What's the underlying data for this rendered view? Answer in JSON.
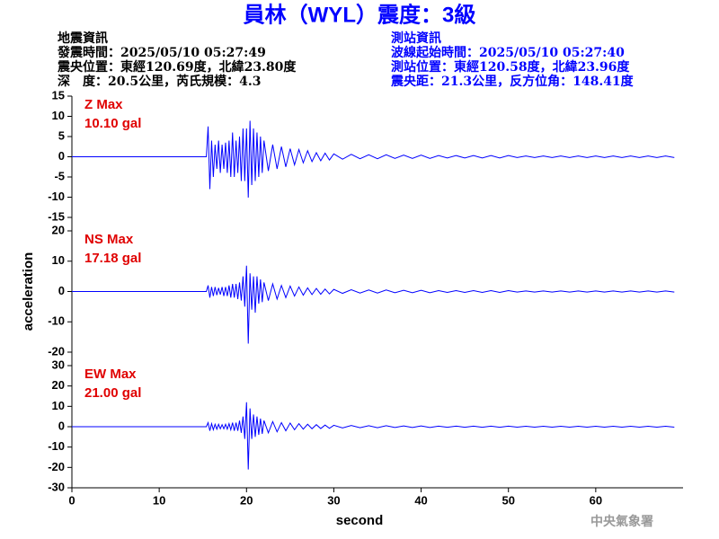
{
  "header": {
    "title": "員林（WYL）震度：3級",
    "left": [
      "地震資訊",
      "發震時間：2025/05/10 05:27:49",
      "震央位置：東經120.69度，北緯23.80度",
      "深　度：20.5公里，芮氏規模：4.3"
    ],
    "right": [
      "測站資訊",
      "波線起始時間：2025/05/10 05:27:40",
      "測站位置：東經120.58度，北緯23.96度",
      "震央距：21.3公里，反方位角：148.41度"
    ],
    "watermark": "中央氣象署"
  },
  "chart_data": [
    {
      "type": "line",
      "annotation": [
        "Z Max",
        "10.10 gal"
      ],
      "color": "#0000ff",
      "xlim": [
        0,
        70
      ],
      "ylim": [
        -15,
        15
      ],
      "yticks": [
        -15,
        -10,
        -5,
        0,
        5,
        10,
        15
      ],
      "x": [
        0,
        15.4,
        15.6,
        15.8,
        16,
        16.2,
        16.4,
        16.6,
        16.8,
        17,
        17.2,
        17.4,
        17.6,
        17.8,
        18,
        18.2,
        18.4,
        18.6,
        18.8,
        19,
        19.2,
        19.4,
        19.6,
        19.8,
        20,
        20.2,
        20.4,
        20.6,
        20.8,
        21,
        21.2,
        21.4,
        21.6,
        21.8,
        22,
        22.5,
        23,
        23.5,
        24,
        24.5,
        25,
        25.5,
        26,
        26.5,
        27,
        27.5,
        28,
        28.5,
        29,
        29.5,
        30,
        31,
        32,
        33,
        34,
        35,
        36,
        37,
        38,
        39,
        40,
        41,
        42,
        43,
        44,
        45,
        46,
        47,
        48,
        49,
        50,
        51,
        52,
        53,
        54,
        55,
        56,
        57,
        58,
        59,
        60,
        61,
        62,
        63,
        64,
        65,
        66,
        67,
        68,
        69
      ],
      "values": [
        0,
        0,
        7.5,
        -8,
        4,
        -5,
        3,
        -3,
        4,
        -4,
        3,
        -3,
        3.5,
        -4,
        4,
        -5,
        6,
        -5,
        4,
        -4,
        5,
        -6,
        7,
        -6,
        7,
        -10.1,
        8.9,
        -7,
        7,
        -6,
        6,
        -5,
        5,
        -4,
        4,
        -3.5,
        3,
        -3,
        2.5,
        -2.5,
        2,
        -2,
        1.8,
        -1.5,
        1.5,
        -1.2,
        1,
        -1,
        0.9,
        -0.8,
        0.7,
        -0.6,
        0.6,
        -0.5,
        0.5,
        -0.5,
        0.5,
        -0.4,
        0.4,
        -0.4,
        0.4,
        -0.4,
        0.3,
        -0.3,
        0.3,
        -0.3,
        0.3,
        -0.3,
        0.3,
        -0.3,
        0.3,
        -0.2,
        0.2,
        -0.2,
        0.2,
        -0.2,
        0.2,
        -0.2,
        0.2,
        -0.2,
        0.2,
        -0.2,
        0.2,
        -0.2,
        0.2,
        -0.2,
        0.2,
        -0.2,
        0.2,
        -0.2
      ]
    },
    {
      "type": "line",
      "annotation": [
        "NS Max",
        "17.18 gal"
      ],
      "color": "#0000ff",
      "ylabel": "acceleration",
      "xlim": [
        0,
        70
      ],
      "ylim": [
        -20,
        20
      ],
      "yticks": [
        -20,
        -10,
        0,
        10,
        20
      ],
      "x": [
        0,
        15.4,
        15.6,
        15.8,
        16,
        16.2,
        16.4,
        16.6,
        16.8,
        17,
        17.2,
        17.4,
        17.6,
        17.8,
        18,
        18.2,
        18.4,
        18.6,
        18.8,
        19,
        19.2,
        19.4,
        19.6,
        19.8,
        20,
        20.2,
        20.4,
        20.6,
        20.8,
        21,
        21.2,
        21.4,
        21.6,
        21.8,
        22,
        22.5,
        23,
        23.5,
        24,
        24.5,
        25,
        25.5,
        26,
        26.5,
        27,
        27.5,
        28,
        28.5,
        29,
        29.5,
        30,
        31,
        32,
        33,
        34,
        35,
        36,
        37,
        38,
        39,
        40,
        41,
        42,
        43,
        44,
        45,
        46,
        47,
        48,
        49,
        50,
        51,
        52,
        53,
        54,
        55,
        56,
        57,
        58,
        59,
        60,
        61,
        62,
        63,
        64,
        65,
        66,
        67,
        68,
        69
      ],
      "values": [
        0,
        0,
        2,
        -2,
        1.5,
        -1.5,
        1.5,
        -1.2,
        1.2,
        -1,
        1.5,
        -1.5,
        1.5,
        -1.5,
        2,
        -2,
        2.5,
        -2,
        2.5,
        -2.5,
        3,
        -3,
        5,
        -5,
        8.5,
        -17.2,
        6,
        -6,
        5,
        -7,
        5,
        -4,
        4,
        -3.5,
        3,
        -3,
        2.5,
        -2.5,
        2,
        -2,
        1.8,
        -1.5,
        1.5,
        -1.2,
        1.2,
        -1,
        1,
        -0.9,
        0.8,
        -0.8,
        0.7,
        -0.6,
        0.6,
        -0.5,
        0.5,
        -0.5,
        0.5,
        -0.4,
        0.4,
        -0.4,
        0.4,
        -0.4,
        0.3,
        -0.3,
        0.3,
        -0.3,
        0.3,
        -0.3,
        0.3,
        -0.3,
        0.3,
        -0.2,
        0.2,
        -0.2,
        0.2,
        -0.2,
        0.2,
        -0.2,
        0.2,
        -0.2,
        0.2,
        -0.2,
        0.2,
        -0.2,
        0.2,
        -0.2,
        0.2,
        -0.2,
        0.2,
        -0.2
      ]
    },
    {
      "type": "line",
      "annotation": [
        "EW Max",
        "21.00 gal"
      ],
      "color": "#0000ff",
      "xlabel": "second",
      "xlim": [
        0,
        70
      ],
      "xticks": [
        0,
        10,
        20,
        30,
        40,
        50,
        60
      ],
      "ylim": [
        -30,
        30
      ],
      "yticks": [
        -30,
        -20,
        -10,
        0,
        10,
        20,
        30
      ],
      "x": [
        0,
        15.4,
        15.6,
        15.8,
        16,
        16.2,
        16.4,
        16.6,
        16.8,
        17,
        17.2,
        17.4,
        17.6,
        17.8,
        18,
        18.2,
        18.4,
        18.6,
        18.8,
        19,
        19.2,
        19.4,
        19.6,
        19.8,
        20,
        20.2,
        20.4,
        20.6,
        20.8,
        21,
        21.2,
        21.4,
        21.6,
        21.8,
        22,
        22.5,
        23,
        23.5,
        24,
        24.5,
        25,
        25.5,
        26,
        26.5,
        27,
        27.5,
        28,
        28.5,
        29,
        29.5,
        30,
        31,
        32,
        33,
        34,
        35,
        36,
        37,
        38,
        39,
        40,
        41,
        42,
        43,
        44,
        45,
        46,
        47,
        48,
        49,
        50,
        51,
        52,
        53,
        54,
        55,
        56,
        57,
        58,
        59,
        60,
        61,
        62,
        63,
        64,
        65,
        66,
        67,
        68,
        69
      ],
      "values": [
        0,
        0,
        2,
        -2,
        1.5,
        -1.5,
        1.2,
        -1.2,
        1.2,
        -1,
        1,
        -1,
        1.2,
        -1.2,
        1.5,
        -1.5,
        2,
        -2,
        2,
        -2,
        3,
        -3,
        5,
        -6,
        12,
        -21,
        9,
        -6,
        6,
        -5,
        5,
        -4,
        4,
        -3.5,
        3,
        -3,
        2.5,
        -2.5,
        2,
        -2,
        1.8,
        -1.5,
        1.5,
        -1.2,
        1.2,
        -1,
        1,
        -0.9,
        0.8,
        -0.8,
        0.7,
        -0.6,
        0.6,
        -0.5,
        0.5,
        -0.5,
        0.5,
        -0.4,
        0.4,
        -0.4,
        0.4,
        -0.4,
        0.3,
        -0.3,
        0.3,
        -0.3,
        0.3,
        -0.3,
        0.3,
        -0.3,
        0.3,
        -0.2,
        0.2,
        -0.2,
        0.2,
        -0.2,
        0.2,
        -0.2,
        0.2,
        -0.2,
        0.2,
        -0.2,
        0.2,
        -0.2,
        0.2,
        -0.2,
        0.2,
        -0.2,
        0.2,
        -0.2
      ]
    }
  ]
}
